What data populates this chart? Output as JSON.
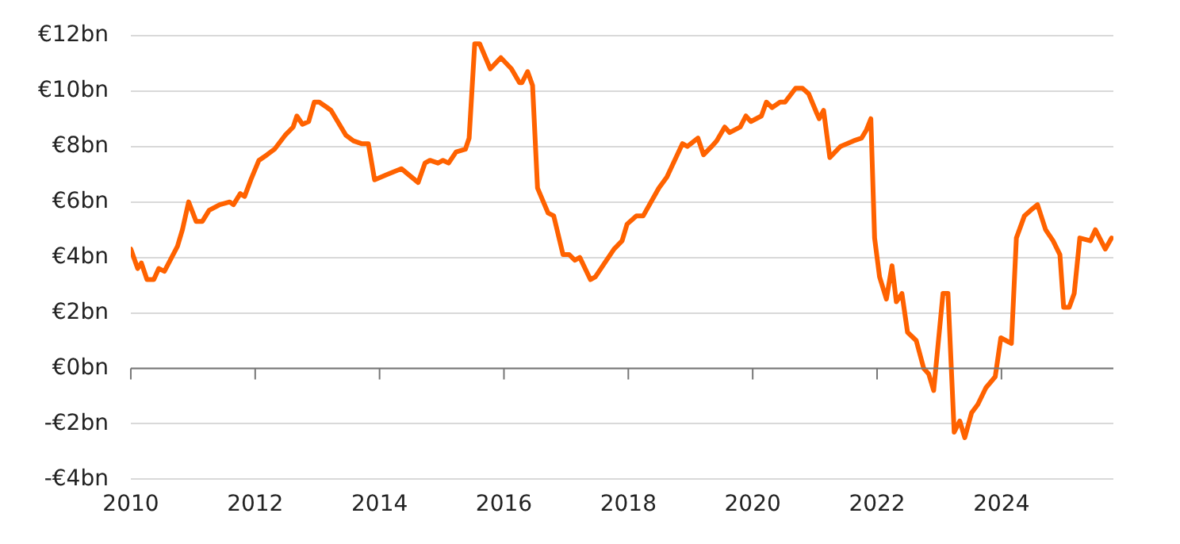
{
  "chart_data": {
    "type": "line",
    "x": [
      2010.0,
      2010.11,
      2010.17,
      2010.26,
      2010.37,
      2010.45,
      2010.54,
      2010.75,
      2010.83,
      2010.93,
      2011.05,
      2011.15,
      2011.26,
      2011.43,
      2011.59,
      2011.65,
      2011.76,
      2011.83,
      2011.93,
      2012.06,
      2012.19,
      2012.31,
      2012.48,
      2012.61,
      2012.67,
      2012.76,
      2012.86,
      2012.95,
      2013.03,
      2013.16,
      2013.22,
      2013.46,
      2013.58,
      2013.71,
      2013.82,
      2013.92,
      2014.13,
      2014.35,
      2014.62,
      2014.73,
      2014.81,
      2014.94,
      2015.02,
      2015.11,
      2015.23,
      2015.38,
      2015.44,
      2015.53,
      2015.61,
      2015.78,
      2015.95,
      2016.12,
      2016.25,
      2016.29,
      2016.38,
      2016.46,
      2016.54,
      2016.71,
      2016.8,
      2016.95,
      2017.05,
      2017.14,
      2017.22,
      2017.39,
      2017.47,
      2017.77,
      2017.9,
      2017.98,
      2018.13,
      2018.24,
      2018.49,
      2018.62,
      2018.87,
      2018.95,
      2019.12,
      2019.21,
      2019.34,
      2019.42,
      2019.55,
      2019.63,
      2019.8,
      2019.89,
      2019.97,
      2020.14,
      2020.22,
      2020.31,
      2020.44,
      2020.52,
      2020.69,
      2020.8,
      2020.9,
      2021.03,
      2021.07,
      2021.14,
      2021.24,
      2021.41,
      2021.62,
      2021.75,
      2021.83,
      2021.9,
      2021.96,
      2022.04,
      2022.15,
      2022.24,
      2022.31,
      2022.4,
      2022.49,
      2022.63,
      2022.75,
      2022.83,
      2022.91,
      2023.06,
      2023.14,
      2023.24,
      2023.33,
      2023.41,
      2023.52,
      2023.62,
      2023.75,
      2023.9,
      2023.99,
      2024.16,
      2024.24,
      2024.37,
      2024.47,
      2024.58,
      2024.71,
      2024.83,
      2024.94,
      2025.0,
      2025.09,
      2025.17,
      2025.26,
      2025.43,
      2025.51,
      2025.67,
      2025.77
    ],
    "series": [
      {
        "color": "#ff6200",
        "values": [
          4.3,
          3.6,
          3.8,
          3.2,
          3.2,
          3.6,
          3.5,
          4.4,
          5.0,
          6.0,
          5.3,
          5.3,
          5.7,
          5.9,
          6.0,
          5.9,
          6.3,
          6.2,
          6.8,
          7.5,
          7.7,
          7.9,
          8.4,
          8.7,
          9.1,
          8.8,
          8.9,
          9.6,
          9.6,
          9.4,
          9.3,
          8.4,
          8.2,
          8.1,
          8.1,
          6.8,
          7.0,
          7.2,
          6.7,
          7.4,
          7.5,
          7.4,
          7.5,
          7.4,
          7.8,
          7.9,
          8.3,
          11.7,
          11.7,
          10.8,
          11.2,
          10.8,
          10.3,
          10.3,
          10.7,
          10.2,
          6.5,
          5.6,
          5.5,
          4.1,
          4.1,
          3.9,
          4.0,
          3.2,
          3.3,
          4.3,
          4.6,
          5.2,
          5.5,
          5.5,
          6.5,
          6.9,
          8.1,
          8.0,
          8.3,
          7.7,
          8.0,
          8.2,
          8.7,
          8.5,
          8.7,
          9.1,
          8.9,
          9.1,
          9.6,
          9.4,
          9.6,
          9.6,
          10.1,
          10.1,
          9.9,
          9.2,
          9.0,
          9.3,
          7.6,
          8.0,
          8.2,
          8.3,
          8.6,
          9.0,
          4.7,
          3.3,
          2.5,
          3.7,
          2.4,
          2.7,
          1.3,
          1.0,
          0.0,
          -0.2,
          -0.8,
          2.7,
          2.7,
          -2.3,
          -1.9,
          -2.5,
          -1.6,
          -1.3,
          -0.7,
          -0.3,
          1.1,
          0.9,
          4.7,
          5.5,
          5.7,
          5.9,
          5.0,
          4.6,
          4.1,
          2.2,
          2.2,
          2.7,
          4.7,
          4.6,
          5.0,
          4.3,
          4.7
        ]
      }
    ],
    "xlim": [
      2010,
      2025.8
    ],
    "xticks": [
      2010,
      2012,
      2014,
      2016,
      2018,
      2020,
      2022,
      2024
    ],
    "ylim": [
      -4,
      12
    ],
    "yticks": [
      {
        "value": -4,
        "label": "-€4bn"
      },
      {
        "value": -2,
        "label": "-€2bn"
      },
      {
        "value": 0,
        "label": "€0bn"
      },
      {
        "value": 2,
        "label": "€2bn"
      },
      {
        "value": 4,
        "label": "€4bn"
      },
      {
        "value": 6,
        "label": "€6bn"
      },
      {
        "value": 8,
        "label": "€8bn"
      },
      {
        "value": 10,
        "label": "€10bn"
      },
      {
        "value": 12,
        "label": "€12bn"
      }
    ],
    "grid": "y",
    "legend": false,
    "marker": "none",
    "line_style": "solid"
  }
}
